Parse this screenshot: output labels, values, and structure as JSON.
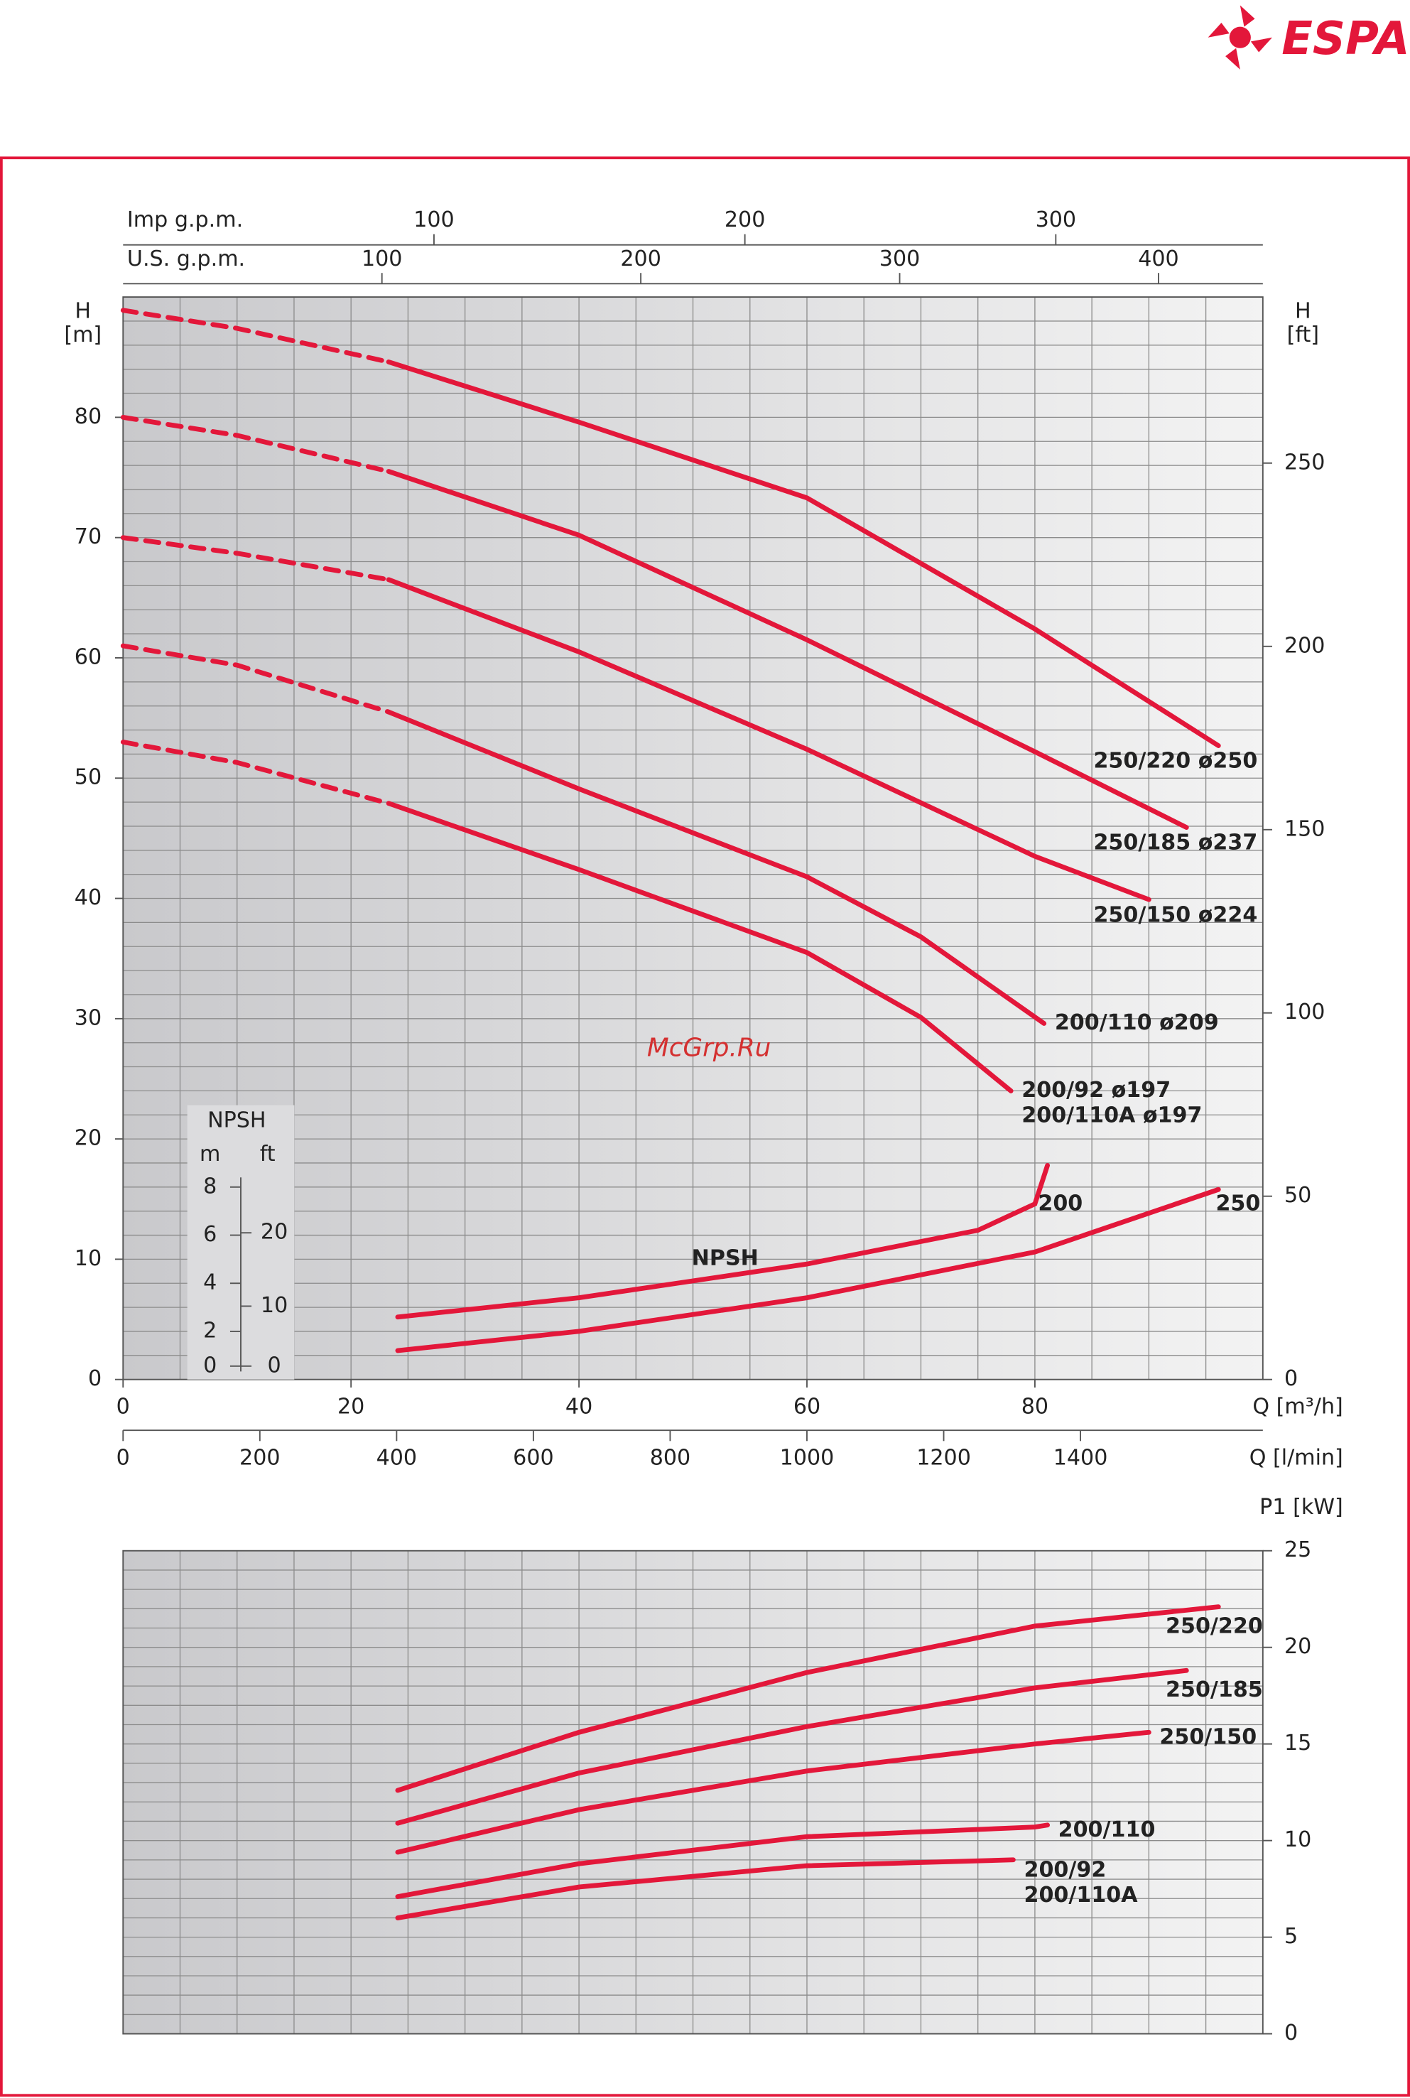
{
  "logo": "ESPA",
  "watermark": "McGrp.Ru",
  "chart_data": [
    {
      "type": "line",
      "y_label": [
        "H",
        "[m]"
      ],
      "y2_label": [
        "H",
        "[ft]"
      ],
      "x_label": "Q [m³/h]",
      "xlim": [
        0,
        100
      ],
      "xticks": [
        0,
        20,
        40,
        60,
        80
      ],
      "ylim": [
        0,
        90
      ],
      "yticks": [
        0,
        10,
        20,
        30,
        40,
        50,
        60,
        70,
        80
      ],
      "y2lim": [
        0,
        295.3
      ],
      "y2ticks": [
        0,
        50,
        100,
        150,
        200,
        250
      ],
      "xgrid": [
        0,
        5,
        10,
        15,
        20,
        25,
        30,
        35,
        40,
        45,
        50,
        55,
        60,
        65,
        70,
        75,
        80,
        85,
        90,
        95,
        100
      ],
      "ygrid": [
        0,
        2,
        4,
        6,
        8,
        10,
        12,
        14,
        16,
        18,
        20,
        22,
        24,
        26,
        28,
        30,
        32,
        34,
        36,
        38,
        40,
        42,
        44,
        46,
        48,
        50,
        52,
        54,
        56,
        58,
        60,
        62,
        64,
        66,
        68,
        70,
        72,
        74,
        76,
        78,
        80,
        82,
        84,
        86,
        88,
        90
      ],
      "secondary_x_axes": [
        {
          "label": "Imp g.p.m.",
          "position": "top",
          "lim": [
            0,
            366.6
          ],
          "ticks": [
            100,
            200,
            300
          ]
        },
        {
          "label": "U.S. g.p.m.",
          "position": "top",
          "lim": [
            0,
            440.3
          ],
          "ticks": [
            100,
            200,
            300,
            400
          ]
        },
        {
          "label": "Q [l/min]",
          "position": "bottom",
          "lim": [
            0,
            1666.7
          ],
          "ticks": [
            0,
            200,
            400,
            600,
            800,
            1000,
            1200,
            1400
          ]
        }
      ],
      "color": "#e3173a",
      "series": [
        {
          "name": [
            "250/220  ø250"
          ],
          "segments": [
            {
              "style": "dashed",
              "x": [
                0,
                10,
                23.3
              ],
              "values": [
                88.9,
                87.4,
                84.6
              ]
            },
            {
              "style": "solid",
              "x": [
                23.3,
                40,
                60,
                80,
                96.1
              ],
              "values": [
                84.6,
                79.6,
                73.3,
                62.4,
                52.7
              ]
            }
          ]
        },
        {
          "name": [
            "250/185  ø237"
          ],
          "segments": [
            {
              "style": "dashed",
              "x": [
                0,
                10,
                23.3
              ],
              "values": [
                80,
                78.5,
                75.5
              ]
            },
            {
              "style": "solid",
              "x": [
                23.3,
                40,
                60,
                80,
                93.3
              ],
              "values": [
                75.5,
                70.2,
                61.5,
                52.2,
                45.9
              ]
            }
          ]
        },
        {
          "name": [
            "250/150  ø224"
          ],
          "segments": [
            {
              "style": "dashed",
              "x": [
                0,
                10,
                23.3
              ],
              "values": [
                70,
                68.7,
                66.5
              ]
            },
            {
              "style": "solid",
              "x": [
                23.3,
                40,
                60,
                80,
                90
              ],
              "values": [
                66.5,
                60.5,
                52.4,
                43.5,
                39.9
              ]
            }
          ]
        },
        {
          "name": [
            "200/110  ø209"
          ],
          "segments": [
            {
              "style": "dashed",
              "x": [
                0,
                10,
                23.3
              ],
              "values": [
                61,
                59.4,
                55.5
              ]
            },
            {
              "style": "solid",
              "x": [
                23.3,
                40,
                60,
                70,
                80.8
              ],
              "values": [
                55.5,
                49.1,
                41.8,
                36.8,
                29.6
              ]
            }
          ]
        },
        {
          "name": [
            "200/92  ø197",
            "200/110A  ø197"
          ],
          "segments": [
            {
              "style": "dashed",
              "x": [
                0,
                10,
                23.3
              ],
              "values": [
                53,
                51.3,
                47.9
              ]
            },
            {
              "style": "solid",
              "x": [
                23.3,
                40,
                60,
                70,
                77.9
              ],
              "values": [
                47.9,
                42.4,
                35.5,
                30.1,
                24.0
              ]
            }
          ]
        }
      ],
      "npsh": {
        "title": "NPSH",
        "label": "NPSH",
        "m_label": "m",
        "ft_label": "ft",
        "ylim": [
          0,
          45
        ],
        "yticks": [
          0,
          2,
          4,
          6,
          8
        ],
        "y2lim": [
          0,
          147.6
        ],
        "y2ticks": [
          0,
          10,
          20
        ],
        "series": [
          {
            "name": "200",
            "x": [
              24.1,
              40,
              60,
              75,
              80,
              81.1
            ],
            "values": [
              2.6,
              3.4,
              4.8,
              6.2,
              7.3,
              8.9
            ]
          },
          {
            "name": "250",
            "x": [
              24.1,
              40,
              60,
              80,
              96.1
            ],
            "values": [
              1.2,
              2.0,
              3.4,
              5.3,
              7.9
            ]
          }
        ]
      }
    },
    {
      "type": "line",
      "y_label": "P1 [kW]",
      "xlim": [
        0,
        100
      ],
      "ylim": [
        0,
        25
      ],
      "yticks": [
        0,
        5,
        10,
        15,
        20,
        25
      ],
      "xgrid": [
        0,
        5,
        10,
        15,
        20,
        25,
        30,
        35,
        40,
        45,
        50,
        55,
        60,
        65,
        70,
        75,
        80,
        85,
        90,
        95,
        100
      ],
      "ygrid": [
        0,
        1,
        2,
        3,
        4,
        5,
        6,
        7,
        8,
        9,
        10,
        11,
        12,
        13,
        14,
        15,
        16,
        17,
        18,
        19,
        20,
        21,
        22,
        23,
        24,
        25
      ],
      "color": "#e3173a",
      "series": [
        {
          "name": [
            "250/220"
          ],
          "x": [
            24.1,
            40,
            60,
            80,
            96.1
          ],
          "values": [
            12.6,
            15.6,
            18.7,
            21.1,
            22.1
          ]
        },
        {
          "name": [
            "250/185"
          ],
          "x": [
            24.1,
            40,
            60,
            80,
            93.3
          ],
          "values": [
            10.9,
            13.5,
            15.9,
            17.9,
            18.8
          ]
        },
        {
          "name": [
            "250/150"
          ],
          "x": [
            24.1,
            40,
            60,
            80,
            90
          ],
          "values": [
            9.4,
            11.6,
            13.6,
            15.0,
            15.6
          ]
        },
        {
          "name": [
            "200/110"
          ],
          "x": [
            24.1,
            40,
            60,
            80,
            81.1
          ],
          "values": [
            7.1,
            8.8,
            10.2,
            10.7,
            10.8
          ]
        },
        {
          "name": [
            "200/92",
            "200/110A"
          ],
          "x": [
            24.1,
            40,
            60,
            78.1
          ],
          "values": [
            6.0,
            7.6,
            8.7,
            9.0
          ]
        }
      ]
    }
  ]
}
